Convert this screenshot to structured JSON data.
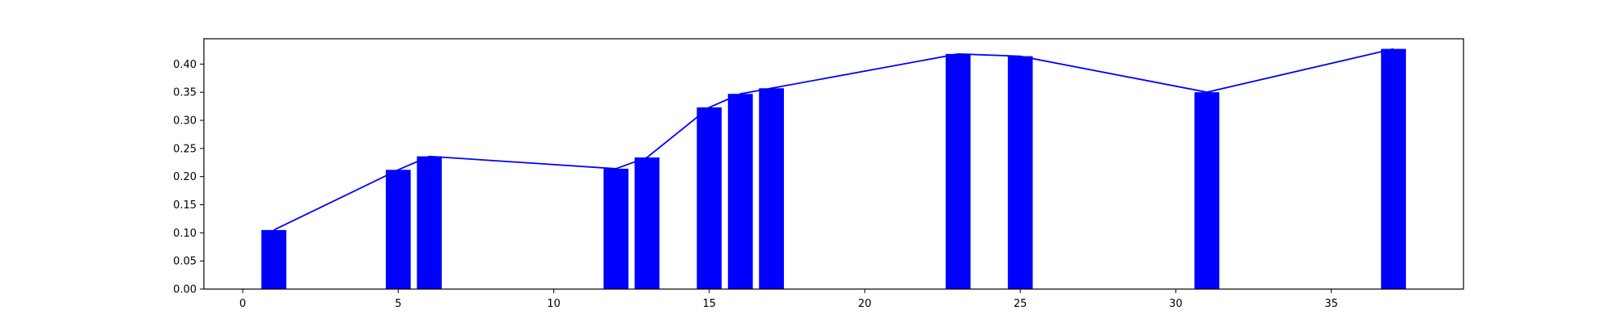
{
  "chart_data": {
    "type": "bar",
    "title": "",
    "xlabel": "",
    "ylabel": "",
    "grid": false,
    "legend": "none",
    "xlim": [
      -1.25,
      39.25
    ],
    "ylim": [
      0,
      0.445
    ],
    "x_ticks": [
      0,
      5,
      10,
      15,
      20,
      25,
      30,
      35
    ],
    "x_tick_labels": [
      "0",
      "5",
      "10",
      "15",
      "20",
      "25",
      "30",
      "35"
    ],
    "y_ticks": [
      0.0,
      0.05,
      0.1,
      0.15,
      0.2,
      0.25,
      0.3,
      0.35,
      0.4
    ],
    "y_tick_labels": [
      "0.00",
      "0.05",
      "0.10",
      "0.15",
      "0.20",
      "0.25",
      "0.30",
      "0.35",
      "0.40"
    ],
    "bar_color": "#0000ff",
    "line_color": "#0000ff",
    "bar_width": 0.8,
    "x": [
      1,
      5,
      6,
      12,
      13,
      15,
      16,
      17,
      23,
      25,
      31,
      37
    ],
    "values": [
      0.105,
      0.212,
      0.236,
      0.214,
      0.234,
      0.323,
      0.347,
      0.357,
      0.418,
      0.414,
      0.35,
      0.427
    ],
    "series": [
      {
        "type": "bar",
        "values": [
          0.105,
          0.212,
          0.236,
          0.214,
          0.234,
          0.323,
          0.347,
          0.357,
          0.418,
          0.414,
          0.35,
          0.427
        ]
      },
      {
        "type": "line",
        "values": [
          0.105,
          0.212,
          0.236,
          0.214,
          0.234,
          0.323,
          0.347,
          0.357,
          0.418,
          0.414,
          0.35,
          0.427
        ]
      }
    ]
  }
}
